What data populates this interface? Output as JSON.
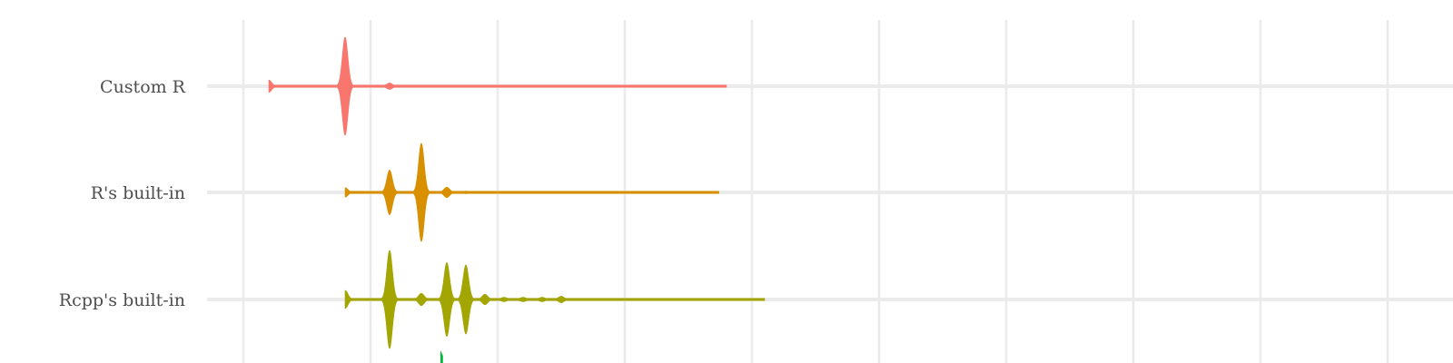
{
  "chart_data": {
    "type": "violin",
    "orientation": "horizontal",
    "title": "",
    "xlabel": "",
    "ylabel": "",
    "grid": true,
    "xlim": [
      0,
      9
    ],
    "x_gridlines": [
      0,
      1,
      2,
      3,
      4,
      5,
      6,
      7,
      8,
      9
    ],
    "categories": [
      "Custom R",
      "R's built-in",
      "Rcpp's built-in"
    ],
    "partially_visible_category_color": "#00BA38",
    "series": [
      {
        "name": "Custom R",
        "color": "#F8766D",
        "min": 0.2,
        "max": 3.8,
        "peaks": [
          {
            "x": 0.2,
            "density": 0.12
          },
          {
            "x": 0.8,
            "density": 1.0
          },
          {
            "x": 1.15,
            "density": 0.06
          }
        ]
      },
      {
        "name": "R's built-in",
        "color": "#D89000",
        "min": 0.8,
        "max": 3.74,
        "peaks": [
          {
            "x": 0.8,
            "density": 0.09
          },
          {
            "x": 1.15,
            "density": 0.45
          },
          {
            "x": 1.4,
            "density": 1.0
          },
          {
            "x": 1.6,
            "density": 0.1
          },
          {
            "x": 1.75,
            "density": 0.02
          }
        ]
      },
      {
        "name": "Rcpp's built-in",
        "color": "#A3A500",
        "min": 0.8,
        "max": 4.1,
        "peaks": [
          {
            "x": 0.8,
            "density": 0.18
          },
          {
            "x": 1.15,
            "density": 1.0
          },
          {
            "x": 1.4,
            "density": 0.12
          },
          {
            "x": 1.6,
            "density": 0.75
          },
          {
            "x": 1.75,
            "density": 0.7
          },
          {
            "x": 1.9,
            "density": 0.1
          },
          {
            "x": 2.05,
            "density": 0.04
          },
          {
            "x": 2.2,
            "density": 0.04
          },
          {
            "x": 2.35,
            "density": 0.04
          },
          {
            "x": 2.5,
            "density": 0.06
          }
        ]
      }
    ]
  }
}
